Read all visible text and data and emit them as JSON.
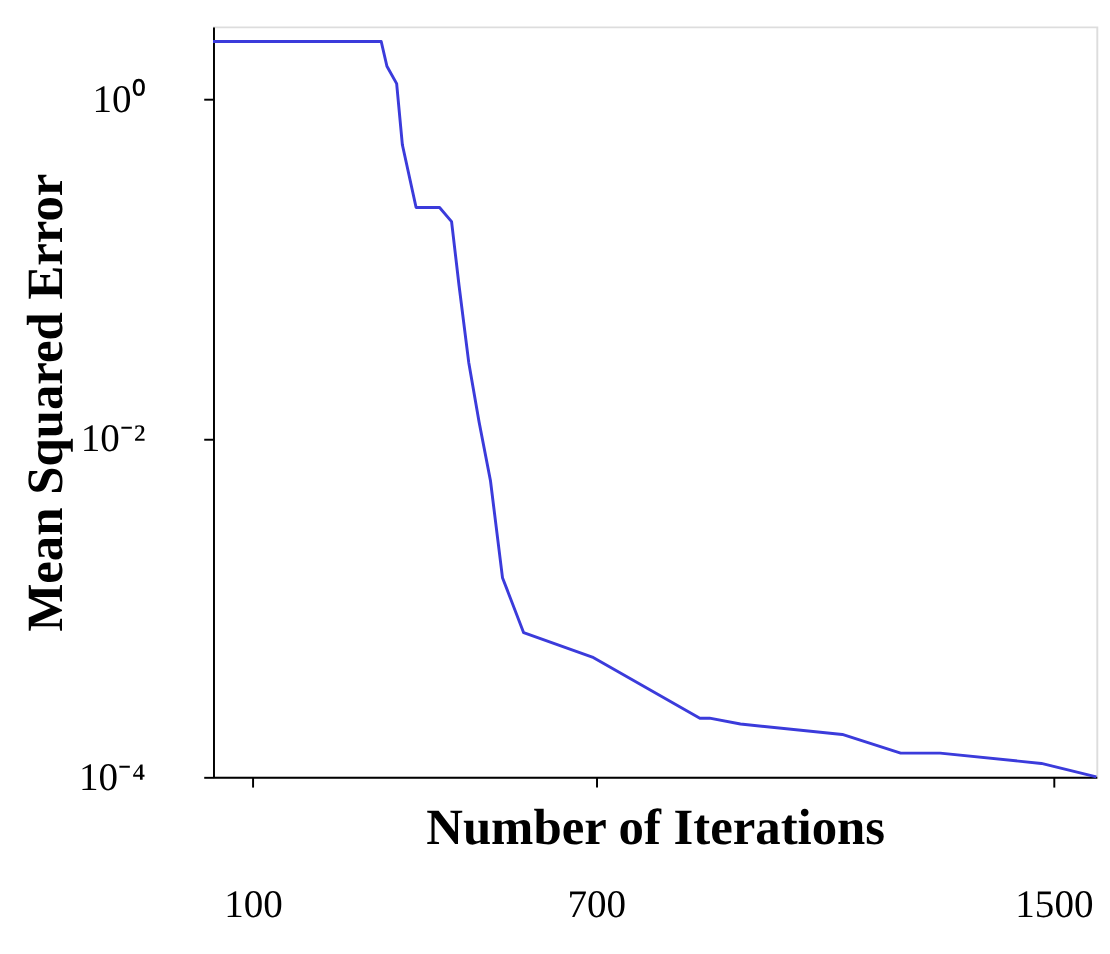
{
  "chart_data": {
    "type": "line",
    "xlabel": "Number of Iterations",
    "ylabel": "Mean Squared Error",
    "x": [
      31,
      325,
      335,
      352,
      362,
      386,
      427,
      448,
      461,
      478,
      496,
      516,
      537,
      574,
      694,
      882,
      899,
      953,
      1131,
      1233,
      1302,
      1479,
      1575
    ],
    "series": [
      {
        "color": "#3b3bdb",
        "values": [
          2.2,
          2.2,
          1.57,
          1.24,
          0.54,
          0.23,
          0.23,
          0.19,
          0.08,
          0.028,
          0.0125,
          0.0056,
          0.0015,
          0.00071,
          0.00051,
          0.000222,
          0.000222,
          0.000205,
          0.000178,
          0.000138,
          0.000138,
          0.00012,
          0.0001
        ]
      }
    ],
    "log": "y",
    "xlim": [
      31,
      1575
    ],
    "xticks": [
      100,
      700,
      {
        "value": 1500,
        "label": "1500"
      }
    ],
    "ylim": [
      0.0001,
      2.7
    ],
    "yticks": [
      {
        "value": 1,
        "label": "10⁰"
      },
      {
        "value": 0.01,
        "label": "10⁻²"
      },
      {
        "value": 0.0001,
        "label": "10⁻⁴"
      }
    ],
    "grid": false,
    "legend": false,
    "marker": "none",
    "line_style": "solid"
  }
}
